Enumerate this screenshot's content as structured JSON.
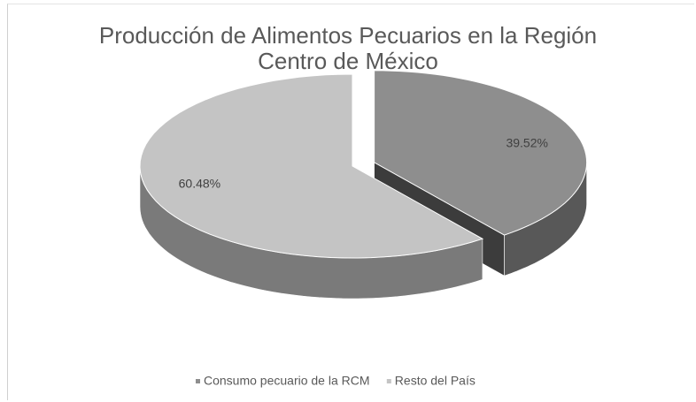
{
  "chart_data": {
    "type": "pie3d",
    "title": "Producción de Alimentos Pecuarios en la Región Centro de México",
    "categories": [
      "Consumo pecuario de la RCM",
      "Resto del País"
    ],
    "values": [
      39.52,
      60.48
    ],
    "value_labels": [
      "39.52%",
      "60.48%"
    ],
    "colors": [
      "#8e8e8e",
      "#c4c4c4"
    ],
    "legend": "bottom"
  }
}
